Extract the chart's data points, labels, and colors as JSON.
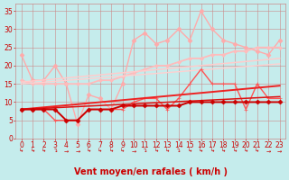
{
  "bg_color": "#c5ecec",
  "grid_color": "#cc8888",
  "xlabel": "Vent moyen/en rafales ( km/h )",
  "xlim": [
    -0.5,
    23.5
  ],
  "ylim": [
    0,
    37
  ],
  "yticks": [
    0,
    5,
    10,
    15,
    20,
    25,
    30,
    35
  ],
  "xticks": [
    0,
    1,
    2,
    3,
    4,
    5,
    6,
    7,
    8,
    9,
    10,
    11,
    12,
    13,
    14,
    15,
    16,
    17,
    18,
    19,
    20,
    21,
    22,
    23
  ],
  "series": [
    {
      "name": "light_pink_upper",
      "color": "#ffaaaa",
      "linewidth": 1.0,
      "marker": "D",
      "markersize": 2.5,
      "x": [
        0,
        1,
        2,
        3,
        4,
        5,
        6,
        7,
        8,
        9,
        10,
        11,
        12,
        13,
        14,
        15,
        16,
        17,
        18,
        19,
        20,
        21,
        22,
        23
      ],
      "y": [
        23,
        16,
        16,
        20,
        15,
        4,
        12,
        11,
        8,
        15,
        27,
        29,
        26,
        27,
        30,
        27,
        35,
        30,
        27,
        26,
        25,
        24,
        23,
        27
      ]
    },
    {
      "name": "light_pink_trend1",
      "color": "#ffbbbb",
      "linewidth": 1.3,
      "marker": "D",
      "markersize": 2.0,
      "x": [
        0,
        1,
        2,
        3,
        4,
        5,
        6,
        7,
        8,
        9,
        10,
        11,
        12,
        13,
        14,
        15,
        16,
        17,
        18,
        19,
        20,
        21,
        22,
        23
      ],
      "y": [
        16,
        15,
        15,
        15,
        15,
        15,
        15,
        16,
        16,
        17,
        18,
        19,
        20,
        20,
        21,
        22,
        22,
        23,
        23,
        24,
        24,
        25,
        25,
        25
      ]
    },
    {
      "name": "light_pink_trend2",
      "color": "#ffcccc",
      "linewidth": 1.1,
      "marker": null,
      "markersize": 0,
      "x": [
        0,
        23
      ],
      "y": [
        15.5,
        22
      ]
    },
    {
      "name": "light_pink_trend3",
      "color": "#ffd0d0",
      "linewidth": 1.0,
      "marker": null,
      "markersize": 0,
      "x": [
        0,
        23
      ],
      "y": [
        15.0,
        20.5
      ]
    },
    {
      "name": "medium_red_data",
      "color": "#ff5555",
      "linewidth": 1.0,
      "marker": "+",
      "markersize": 3.5,
      "x": [
        0,
        1,
        2,
        3,
        4,
        5,
        6,
        7,
        8,
        9,
        10,
        11,
        12,
        13,
        14,
        15,
        16,
        17,
        18,
        19,
        20,
        21,
        22,
        23
      ],
      "y": [
        8,
        8,
        8,
        5,
        5,
        5,
        8,
        8,
        8,
        8,
        10,
        11,
        11,
        8,
        11,
        15,
        19,
        15,
        15,
        15,
        8,
        15,
        11,
        11
      ]
    },
    {
      "name": "red_trend1",
      "color": "#ee2222",
      "linewidth": 1.4,
      "marker": null,
      "markersize": 0,
      "x": [
        0,
        23
      ],
      "y": [
        8.0,
        14.5
      ]
    },
    {
      "name": "red_trend2",
      "color": "#dd1111",
      "linewidth": 1.1,
      "marker": null,
      "markersize": 0,
      "x": [
        0,
        23
      ],
      "y": [
        8.0,
        11.5
      ]
    },
    {
      "name": "dark_red_data",
      "color": "#cc0000",
      "linewidth": 1.4,
      "marker": "D",
      "markersize": 2.5,
      "x": [
        0,
        1,
        2,
        3,
        4,
        5,
        6,
        7,
        8,
        9,
        10,
        11,
        12,
        13,
        14,
        15,
        16,
        17,
        18,
        19,
        20,
        21,
        22,
        23
      ],
      "y": [
        8,
        8,
        8,
        8,
        5,
        5,
        8,
        8,
        8,
        9,
        9,
        9,
        9,
        9,
        9,
        10,
        10,
        10,
        10,
        10,
        10,
        10,
        10,
        10
      ]
    }
  ],
  "arrow_chars": [
    "↳",
    "↳",
    "↳",
    "↴",
    "→",
    "→",
    "↳",
    "↳",
    "↳",
    "↳",
    "→",
    "↴",
    "↳",
    "↳",
    "↴",
    "↳",
    "↳",
    "↳",
    "↳",
    "↳",
    "↳",
    "↳",
    "→",
    "→"
  ],
  "xlabel_color": "#cc0000",
  "tick_color": "#cc0000",
  "label_fontsize": 7,
  "tick_fontsize": 5.5
}
